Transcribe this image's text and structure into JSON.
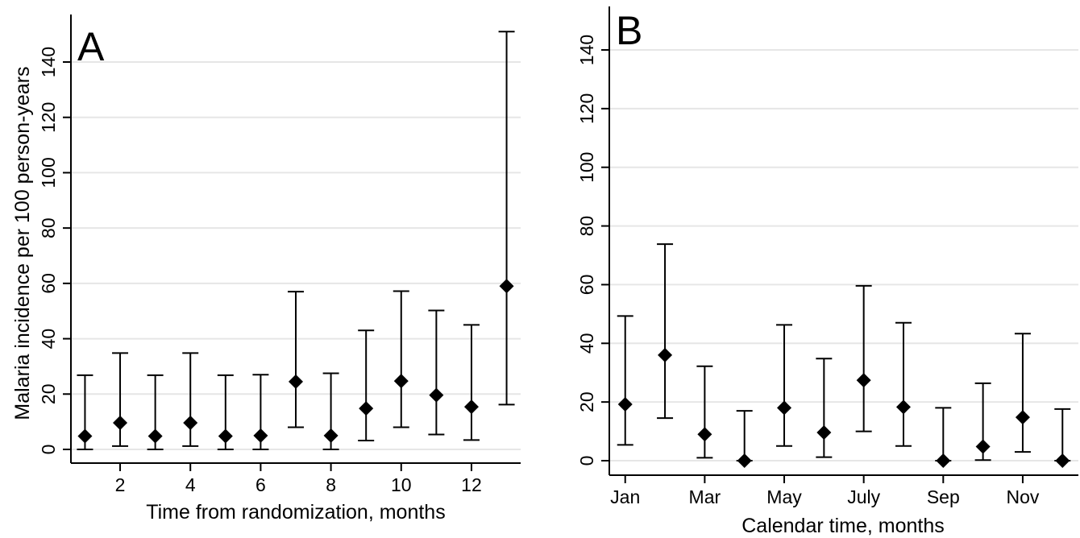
{
  "chart_data": [
    {
      "type": "scatter",
      "panel_label": "A",
      "xlabel": "Time from randomization, months",
      "ylabel": "Malaria incidence per 100 person-years",
      "ylim": [
        0,
        150
      ],
      "xlim": [
        0.6,
        13.4
      ],
      "x_ticks": [
        2,
        4,
        6,
        8,
        10,
        12
      ],
      "x_tick_labels": [
        "2",
        "4",
        "6",
        "8",
        "10",
        "12"
      ],
      "y_ticks": [
        0,
        20,
        40,
        60,
        80,
        100,
        120,
        140
      ],
      "y_tick_labels": [
        "0",
        "20",
        "40",
        "60",
        "80",
        "100",
        "120",
        "140"
      ],
      "grid": true,
      "points": [
        {
          "x": 1,
          "y": 4.8,
          "lower": 0,
          "upper": 26.8
        },
        {
          "x": 2,
          "y": 9.6,
          "lower": 1.2,
          "upper": 34.8
        },
        {
          "x": 3,
          "y": 4.8,
          "lower": 0,
          "upper": 26.8
        },
        {
          "x": 4,
          "y": 9.6,
          "lower": 1.2,
          "upper": 34.8
        },
        {
          "x": 5,
          "y": 4.8,
          "lower": 0,
          "upper": 26.8
        },
        {
          "x": 6,
          "y": 5.0,
          "lower": 0,
          "upper": 27.0
        },
        {
          "x": 7,
          "y": 24.5,
          "lower": 8.0,
          "upper": 57.0
        },
        {
          "x": 8,
          "y": 5.0,
          "lower": 0,
          "upper": 27.5
        },
        {
          "x": 9,
          "y": 14.8,
          "lower": 3.2,
          "upper": 43.0
        },
        {
          "x": 10,
          "y": 24.7,
          "lower": 8.0,
          "upper": 57.2
        },
        {
          "x": 11,
          "y": 19.6,
          "lower": 5.4,
          "upper": 50.2
        },
        {
          "x": 12,
          "y": 15.4,
          "lower": 3.4,
          "upper": 45.0
        },
        {
          "x": 13,
          "y": 59.0,
          "lower": 16.2,
          "upper": 151.0
        }
      ]
    },
    {
      "type": "scatter",
      "panel_label": "B",
      "xlabel": "Calendar time, months",
      "ylabel": "",
      "ylim": [
        0,
        150
      ],
      "xlim": [
        0.6,
        12.4
      ],
      "x_ticks": [
        1,
        3,
        5,
        7,
        9,
        11
      ],
      "x_tick_labels": [
        "Jan",
        "Mar",
        "May",
        "July",
        "Sep",
        "Nov"
      ],
      "y_ticks": [
        0,
        20,
        40,
        60,
        80,
        100,
        120,
        140
      ],
      "y_tick_labels": [
        "0",
        "20",
        "40",
        "60",
        "80",
        "100",
        "120",
        "140"
      ],
      "grid": true,
      "points": [
        {
          "x": 1,
          "y": 19.2,
          "lower": 5.4,
          "upper": 49.3
        },
        {
          "x": 2,
          "y": 36.0,
          "lower": 14.5,
          "upper": 73.8
        },
        {
          "x": 3,
          "y": 9.0,
          "lower": 1.0,
          "upper": 32.2
        },
        {
          "x": 4,
          "y": 0,
          "lower": 0,
          "upper": 17.0
        },
        {
          "x": 5,
          "y": 18.0,
          "lower": 5.0,
          "upper": 46.3
        },
        {
          "x": 6,
          "y": 9.6,
          "lower": 1.2,
          "upper": 34.8
        },
        {
          "x": 7,
          "y": 27.4,
          "lower": 10.0,
          "upper": 59.6
        },
        {
          "x": 8,
          "y": 18.3,
          "lower": 5.0,
          "upper": 47.0
        },
        {
          "x": 9,
          "y": 0,
          "lower": 0,
          "upper": 18.0
        },
        {
          "x": 10,
          "y": 4.8,
          "lower": 0.2,
          "upper": 26.4
        },
        {
          "x": 11,
          "y": 14.8,
          "lower": 3.0,
          "upper": 43.3
        },
        {
          "x": 12,
          "y": 0,
          "lower": 0,
          "upper": 17.6
        }
      ]
    }
  ]
}
